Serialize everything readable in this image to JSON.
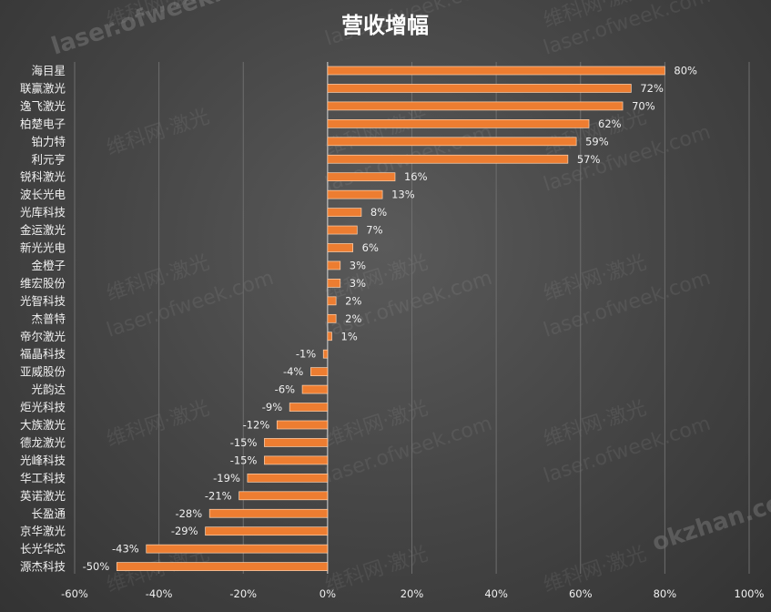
{
  "chart_data": {
    "type": "bar",
    "orientation": "horizontal",
    "title": "营收增幅",
    "xlabel": "",
    "ylabel": "",
    "xlim": [
      -60,
      100
    ],
    "x_ticks": [
      "-60%",
      "-40%",
      "-20%",
      "0%",
      "20%",
      "40%",
      "60%",
      "80%",
      "100%"
    ],
    "x_tick_values": [
      -60,
      -40,
      -20,
      0,
      20,
      40,
      60,
      80,
      100
    ],
    "grid": true,
    "legend": "none",
    "bar_color": "#ed7d31",
    "categories": [
      "海目星",
      "联赢激光",
      "逸飞激光",
      "柏楚电子",
      "铂力特",
      "利元亨",
      "锐科激光",
      "波长光电",
      "光库科技",
      "金运激光",
      "新光光电",
      "金橙子",
      "维宏股份",
      "光智科技",
      "杰普特",
      "帝尔激光",
      "福晶科技",
      "亚威股份",
      "光韵达",
      "炬光科技",
      "大族激光",
      "德龙激光",
      "光峰科技",
      "华工科技",
      "英诺激光",
      "长盈通",
      "京华激光",
      "长光华芯",
      "源杰科技"
    ],
    "values": [
      80,
      72,
      70,
      62,
      59,
      57,
      16,
      13,
      8,
      7,
      6,
      3,
      3,
      2,
      2,
      1,
      -1,
      -4,
      -6,
      -9,
      -12,
      -15,
      -15,
      -19,
      -21,
      -28,
      -29,
      -43,
      -50
    ],
    "data_labels": [
      "80%",
      "72%",
      "70%",
      "62%",
      "59%",
      "57%",
      "16%",
      "13%",
      "8%",
      "7%",
      "6%",
      "3%",
      "3%",
      "2%",
      "2%",
      "1%",
      "-1%",
      "-4%",
      "-6%",
      "-9%",
      "-12%",
      "-15%",
      "-15%",
      "-19%",
      "-21%",
      "-28%",
      "-29%",
      "-43%",
      "-50%"
    ]
  },
  "watermarks": {
    "site_cn": "维科网·激光",
    "site_url": "laser.ofweek.com",
    "site_alt": "okzhan.com"
  }
}
